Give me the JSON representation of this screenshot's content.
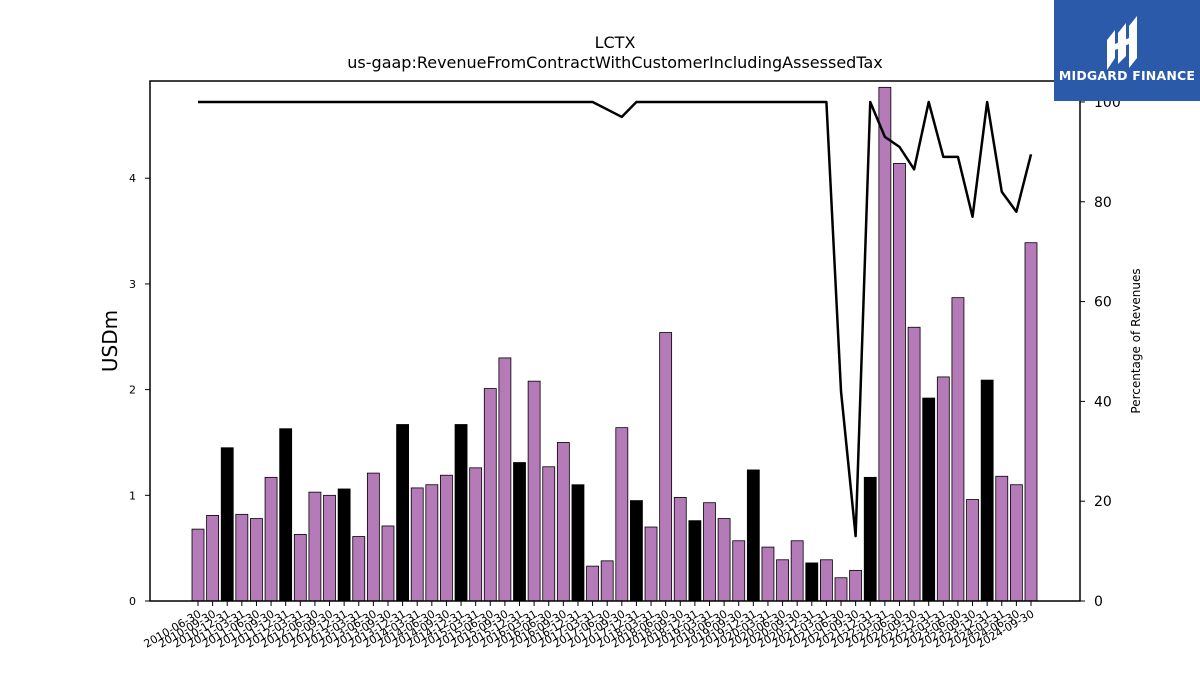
{
  "brand": {
    "name": "MIDGARD FINANCE",
    "logo_bg": "#2c5aab",
    "logo_fg": "#ffffff"
  },
  "colors": {
    "bar_regular": "#b57ab8",
    "bar_highlight": "#000000",
    "line": "#000000"
  },
  "chart_data": {
    "type": "bar",
    "title": "LCTX",
    "subtitle": "us-gaap:RevenueFromContractWithCustomerIncludingAssessedTax",
    "ylabel": "USDm",
    "y2label": "Percentage of Revenues",
    "ylim": [
      0,
      4.92
    ],
    "y2lim": [
      0,
      104.2
    ],
    "yticks": [
      0,
      1,
      2,
      3,
      4
    ],
    "y2ticks": [
      0,
      20,
      40,
      60,
      80,
      100
    ],
    "grid": false,
    "categories": [
      "2010-06-30",
      "2010-09-30",
      "2010-12-31",
      "2011-03-31",
      "2011-06-30",
      "2011-09-30",
      "2011-12-31",
      "2012-03-31",
      "2012-06-30",
      "2012-09-30",
      "2012-12-31",
      "2013-03-31",
      "2013-06-30",
      "2013-09-30",
      "2013-12-31",
      "2014-03-31",
      "2014-06-30",
      "2014-09-30",
      "2014-12-31",
      "2015-03-31",
      "2015-06-30",
      "2015-09-30",
      "2015-12-31",
      "2016-03-31",
      "2016-06-30",
      "2016-09-30",
      "2016-12-31",
      "2017-03-31",
      "2017-06-30",
      "2017-09-30",
      "2017-12-31",
      "2018-03-31",
      "2018-06-30",
      "2018-09-30",
      "2018-12-31",
      "2019-03-31",
      "2019-06-30",
      "2019-09-30",
      "2019-12-31",
      "2020-03-31",
      "2020-06-30",
      "2020-09-30",
      "2020-12-31",
      "2021-03-31",
      "2021-06-30",
      "2021-09-30",
      "2021-12-31",
      "2022-03-31",
      "2022-06-30",
      "2022-09-30",
      "2022-12-31",
      "2023-03-31",
      "2023-06-30",
      "2023-09-30",
      "2023-12-31",
      "2024-03-31",
      "2024-06-30",
      "2024-09-30"
    ],
    "series": [
      {
        "type": "bar",
        "values": [
          0.68,
          0.81,
          1.45,
          0.82,
          0.78,
          1.17,
          1.63,
          0.63,
          1.03,
          1.0,
          1.06,
          0.61,
          1.21,
          0.71,
          1.67,
          1.07,
          1.1,
          1.19,
          1.67,
          1.26,
          2.01,
          2.3,
          1.31,
          2.08,
          1.27,
          1.5,
          1.1,
          0.33,
          0.38,
          1.64,
          0.95,
          0.7,
          2.54,
          0.98,
          0.76,
          0.93,
          0.78,
          0.57,
          1.24,
          0.51,
          0.39,
          0.57,
          0.36,
          0.39,
          0.22,
          0.29,
          1.17,
          4.86,
          4.14,
          2.59,
          1.92,
          2.12,
          2.87,
          0.96,
          2.09,
          1.18,
          1.1,
          3.39
        ],
        "highlight": [
          false,
          false,
          true,
          false,
          false,
          false,
          true,
          false,
          false,
          false,
          true,
          false,
          false,
          false,
          true,
          false,
          false,
          false,
          true,
          false,
          false,
          false,
          true,
          false,
          false,
          false,
          true,
          false,
          false,
          false,
          true,
          false,
          false,
          false,
          true,
          false,
          false,
          false,
          true,
          false,
          false,
          false,
          true,
          false,
          false,
          false,
          true,
          false,
          false,
          false,
          true,
          false,
          false,
          false,
          true,
          false,
          false,
          false
        ]
      },
      {
        "type": "line",
        "axis": "right",
        "values": [
          100,
          100,
          100,
          100,
          100,
          100,
          100,
          100,
          100,
          100,
          100,
          100,
          100,
          100,
          100,
          100,
          100,
          100,
          100,
          100,
          100,
          100,
          100,
          100,
          100,
          100,
          100,
          100,
          98.5,
          97,
          100,
          100,
          100,
          100,
          100,
          100,
          100,
          100,
          100,
          100,
          100,
          100,
          100,
          100,
          42,
          13,
          100,
          93,
          91,
          86.5,
          100,
          89,
          89,
          77,
          100,
          82,
          78,
          89.5
        ]
      }
    ]
  }
}
